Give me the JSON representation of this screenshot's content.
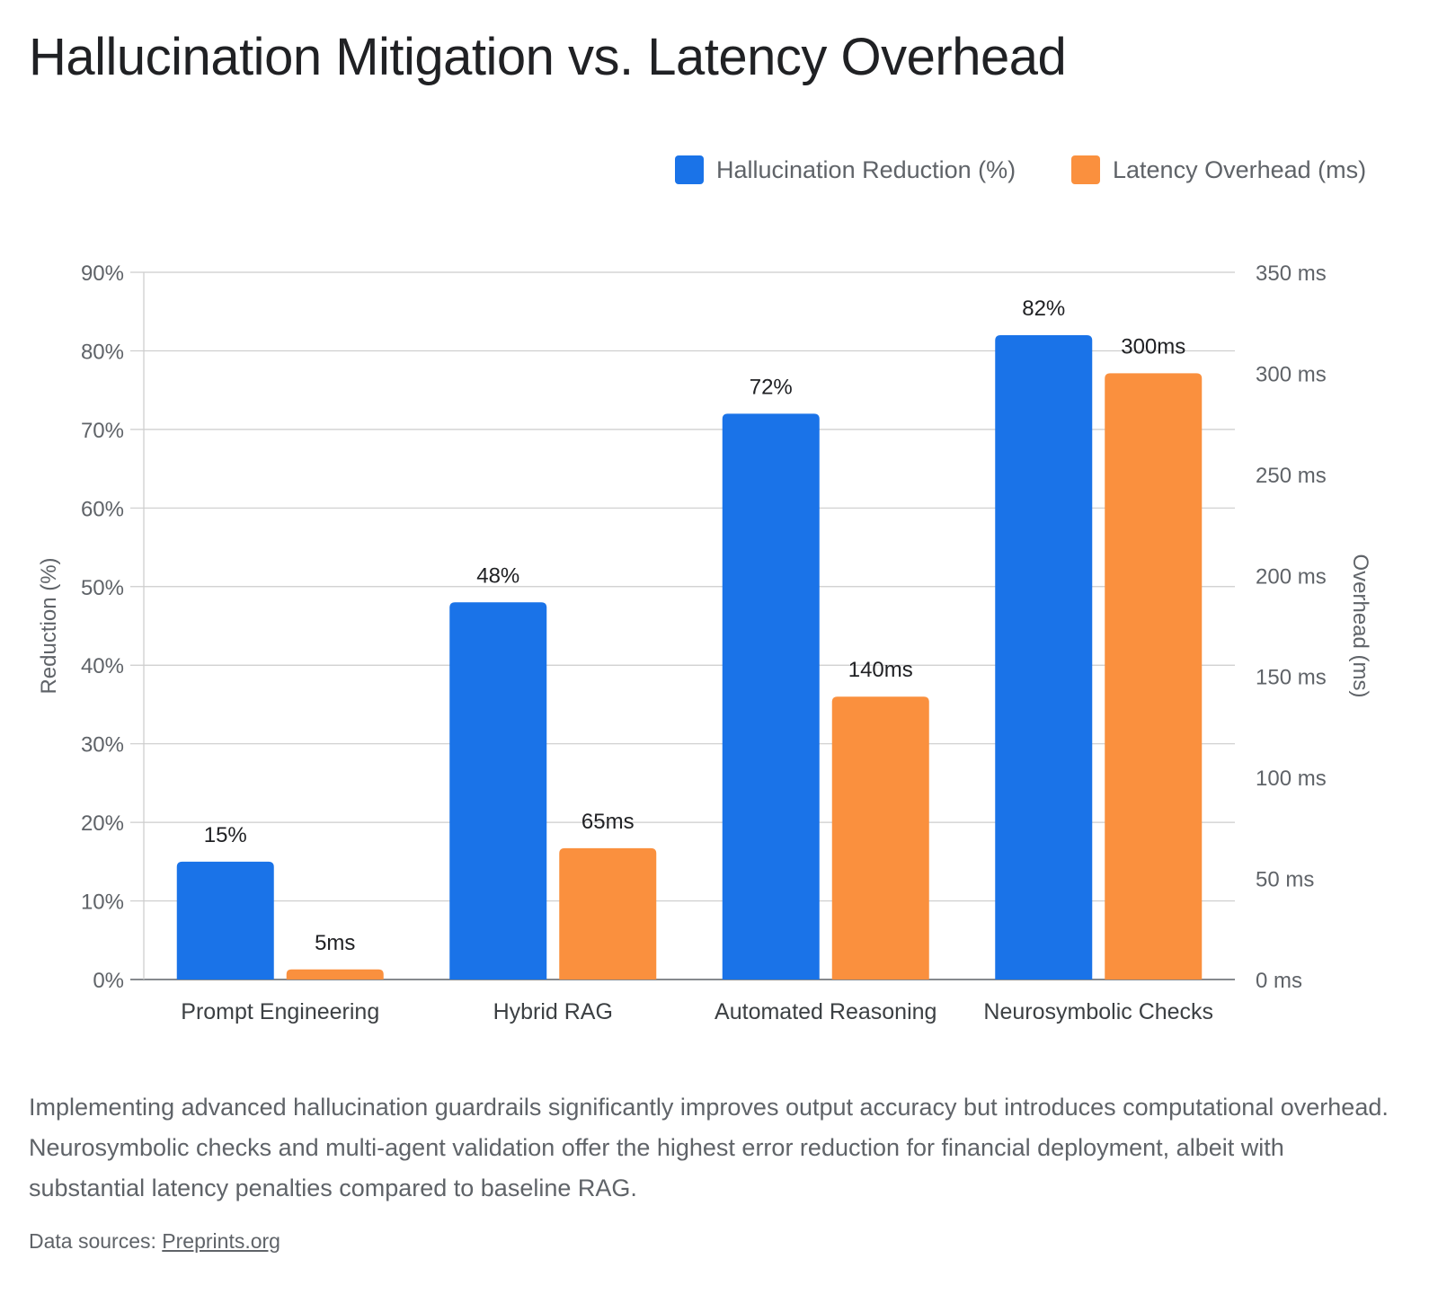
{
  "title": "Hallucination Mitigation vs. Latency Overhead",
  "caption": "Implementing advanced hallucination guardrails significantly improves output accuracy but introduces computational overhead. Neurosymbolic checks and multi-agent validation offer the highest error reduction for financial deployment, albeit with substantial latency penalties compared to baseline RAG.",
  "sources": {
    "label": "Data sources:",
    "link_text": "Preprints.org"
  },
  "colors": {
    "reduction": "#1a73e8",
    "latency": "#fa903e",
    "grid": "#cccccc",
    "axis_text": "#5f6368"
  },
  "chart_data": {
    "type": "bar",
    "categories": [
      "Prompt Engineering",
      "Hybrid RAG",
      "Automated Reasoning",
      "Neurosymbolic Checks"
    ],
    "series": [
      {
        "name": "Hallucination Reduction (%)",
        "axis": "left",
        "values": [
          15,
          48,
          72,
          82
        ],
        "labels": [
          "15%",
          "48%",
          "72%",
          "82%"
        ]
      },
      {
        "name": "Latency Overhead (ms)",
        "axis": "right",
        "values": [
          5,
          65,
          140,
          300
        ],
        "labels": [
          "5ms",
          "65ms",
          "140ms",
          "300ms"
        ]
      }
    ],
    "y_left": {
      "label": "Reduction (%)",
      "range": [
        0,
        90
      ],
      "ticks": [
        0,
        10,
        20,
        30,
        40,
        50,
        60,
        70,
        80,
        90
      ],
      "tick_labels": [
        "0%",
        "10%",
        "20%",
        "30%",
        "40%",
        "50%",
        "60%",
        "70%",
        "80%",
        "90%"
      ]
    },
    "y_right": {
      "label": "Overhead (ms)",
      "range": [
        0,
        350
      ],
      "ticks": [
        0,
        50,
        100,
        150,
        200,
        250,
        300,
        350
      ],
      "tick_labels": [
        "0 ms",
        "50 ms",
        "100 ms",
        "150 ms",
        "200 ms",
        "250 ms",
        "300 ms",
        "350 ms"
      ]
    },
    "grid": true,
    "legend_position": "top-right"
  }
}
